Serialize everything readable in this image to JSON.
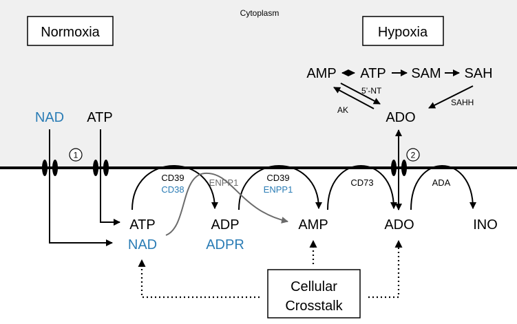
{
  "compartment": {
    "label": "Cytoplasm"
  },
  "conditions": {
    "normoxia": "Normoxia",
    "hypoxia": "Hypoxia"
  },
  "intracellular": {
    "nad": "NAD",
    "atp": "ATP",
    "amp": "AMP",
    "atp2": "ATP",
    "sam": "SAM",
    "sah": "SAH",
    "ado": "ADO",
    "enzymes": {
      "nt5": "5’-NT",
      "ak": "AK",
      "sahh": "SAHH"
    }
  },
  "channels": {
    "one": "1",
    "two": "2"
  },
  "extracellular": {
    "atp": "ATP",
    "nad": "NAD",
    "adp": "ADP",
    "adpr": "ADPR",
    "amp": "AMP",
    "ado": "ADO",
    "ino": "INO",
    "enzymes": {
      "cd39_a": "CD39",
      "cd38": "CD38",
      "enpp1_a": "ENPP1",
      "cd39_b": "CD39",
      "enpp1_b": "ENPP1",
      "cd73": "CD73",
      "ada": "ADA"
    }
  },
  "crosstalk": {
    "line1": "Cellular",
    "line2": "Crosstalk"
  },
  "colors": {
    "nad_blue": "#2a7cb5",
    "enpp1_gray": "#6b6b6b",
    "cytoplasm_fill": "#f0f0f0"
  }
}
